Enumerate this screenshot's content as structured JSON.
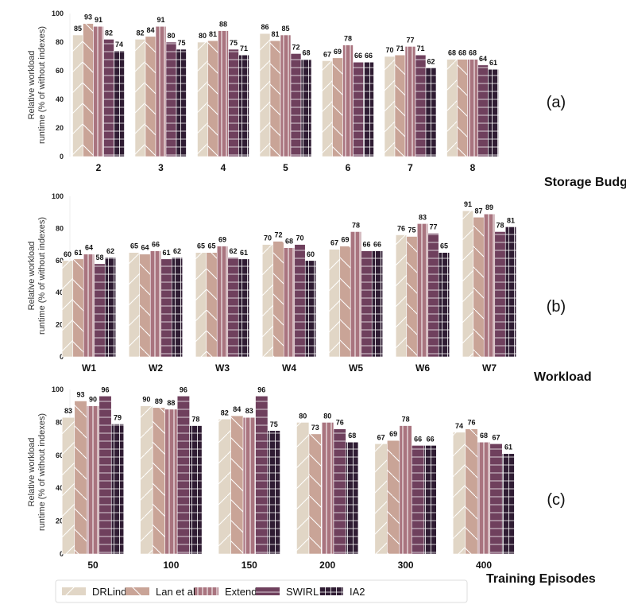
{
  "chart_data": [
    {
      "type": "bar",
      "panel_label": "(a)",
      "xlabel": "Storage Budget",
      "ylabel": "Relative workload runtime (% of without indexes)",
      "ylim": [
        0,
        100
      ],
      "yticks": [
        0,
        20,
        40,
        60,
        80,
        100
      ],
      "categories": [
        "2",
        "3",
        "4",
        "5",
        "6",
        "7",
        "8"
      ],
      "highlight_category": null,
      "series": [
        {
          "name": "DRLinda",
          "values": [
            85,
            82,
            80,
            86,
            67,
            70,
            68
          ]
        },
        {
          "name": "Lan et al",
          "values": [
            93,
            84,
            81,
            81,
            69,
            71,
            68
          ]
        },
        {
          "name": "Extend",
          "values": [
            91,
            91,
            88,
            85,
            78,
            77,
            68
          ]
        },
        {
          "name": "SWIRL",
          "values": [
            82,
            80,
            75,
            72,
            66,
            71,
            64
          ]
        },
        {
          "name": "IA2",
          "values": [
            74,
            75,
            71,
            68,
            66,
            62,
            61
          ]
        }
      ]
    },
    {
      "type": "bar",
      "panel_label": "(b)",
      "xlabel": "Workload",
      "ylabel": "Relative workload runtime (% of without indexes)",
      "ylim": [
        0,
        100
      ],
      "yticks": [
        0,
        20,
        40,
        60,
        80,
        100
      ],
      "categories": [
        "W1",
        "W2",
        "W3",
        "W4",
        "W5",
        "W6",
        "W7"
      ],
      "highlight_category": "W7",
      "series": [
        {
          "name": "DRLinda",
          "values": [
            60,
            65,
            65,
            70,
            67,
            76,
            91
          ]
        },
        {
          "name": "Lan et al",
          "values": [
            61,
            64,
            65,
            72,
            69,
            75,
            87
          ]
        },
        {
          "name": "Extend",
          "values": [
            64,
            66,
            69,
            68,
            78,
            83,
            89
          ]
        },
        {
          "name": "SWIRL",
          "values": [
            58,
            61,
            62,
            70,
            66,
            77,
            78
          ]
        },
        {
          "name": "IA2",
          "values": [
            62,
            62,
            61,
            60,
            66,
            65,
            81
          ]
        }
      ]
    },
    {
      "type": "bar",
      "panel_label": "(c)",
      "xlabel": "Training Episodes",
      "ylabel": "Relative workload runtime (% of without indexes)",
      "ylim": [
        0,
        100
      ],
      "yticks": [
        0,
        20,
        40,
        60,
        80,
        100
      ],
      "categories": [
        "50",
        "100",
        "150",
        "200",
        "300",
        "400"
      ],
      "highlight_category": null,
      "series": [
        {
          "name": "DRLinda",
          "values": [
            83,
            90,
            82,
            80,
            67,
            74
          ]
        },
        {
          "name": "Lan et al",
          "values": [
            93,
            89,
            84,
            73,
            69,
            76
          ]
        },
        {
          "name": "Extend",
          "values": [
            90,
            88,
            83,
            80,
            78,
            68
          ]
        },
        {
          "name": "SWIRL",
          "values": [
            96,
            96,
            96,
            76,
            66,
            67
          ]
        },
        {
          "name": "IA2",
          "values": [
            79,
            78,
            75,
            68,
            66,
            61
          ]
        }
      ]
    }
  ],
  "legend": {
    "placement": "bottom",
    "items": [
      "DRLinda",
      "Lan et al",
      "Extend",
      "SWIRL",
      "IA2"
    ]
  },
  "colors": {
    "DRLinda": "#e1d6c6",
    "Lan et al": "#c9a497",
    "Extend": "#a9747f",
    "SWIRL": "#6f405d",
    "IA2": "#2f1c33",
    "highlight_tick": "#e02020"
  },
  "hatches": {
    "DRLinda": "forward-diagonal",
    "Lan et al": "back-diagonal",
    "Extend": "vertical",
    "SWIRL": "horizontal",
    "IA2": "grid"
  }
}
